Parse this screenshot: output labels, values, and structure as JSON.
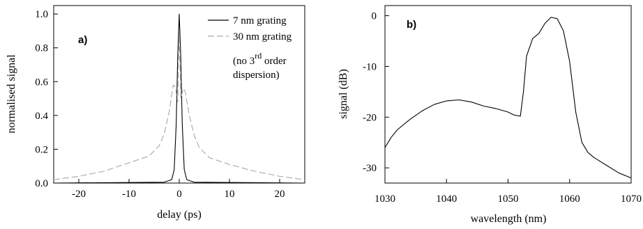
{
  "chart_data": [
    {
      "type": "line",
      "panel": "a)",
      "xlabel": "delay (ps)",
      "ylabel": "normalised signal",
      "xlim": [
        -25,
        25
      ],
      "ylim": [
        0,
        1.05
      ],
      "xticks": [
        "-20",
        "-10",
        "0",
        "10",
        "20"
      ],
      "yticks": [
        "0.0",
        "0.2",
        "0.4",
        "0.6",
        "0.8",
        "1.0"
      ],
      "legend_position": "top-right",
      "legend": [
        "7 nm grating",
        "30 nm grating"
      ],
      "annotation": {
        "line1_prefix": "(no 3",
        "line1_sup": "rd",
        "line1_suffix": " order",
        "line2": "dispersion)"
      },
      "series": [
        {
          "name": "7 nm grating",
          "color": "#000000",
          "style": "solid",
          "x": [
            -25,
            -3,
            -1.5,
            -1.0,
            -0.6,
            -0.3,
            0,
            0.3,
            0.6,
            1.0,
            1.5,
            3,
            25
          ],
          "y": [
            0.0,
            0.005,
            0.02,
            0.08,
            0.35,
            0.75,
            1.0,
            0.75,
            0.35,
            0.08,
            0.02,
            0.005,
            0.0
          ]
        },
        {
          "name": "30 nm grating",
          "color": "#a8a8a8",
          "style": "dashed",
          "x": [
            -25,
            -20,
            -15,
            -10,
            -8,
            -6,
            -4,
            -3,
            -2,
            -1.2,
            -0.8,
            -0.3,
            0,
            0.3,
            0.8,
            1.2,
            2,
            3,
            4,
            6,
            8,
            10,
            15,
            20,
            25
          ],
          "y": [
            0.02,
            0.04,
            0.07,
            0.12,
            0.14,
            0.16,
            0.22,
            0.29,
            0.42,
            0.58,
            0.57,
            0.48,
            0.9,
            0.5,
            0.56,
            0.54,
            0.4,
            0.28,
            0.21,
            0.15,
            0.13,
            0.11,
            0.07,
            0.04,
            0.02
          ]
        }
      ]
    },
    {
      "type": "line",
      "panel": "b)",
      "xlabel": "wavelength (nm)",
      "ylabel": "signal (dB)",
      "xlim": [
        1030,
        1070
      ],
      "ylim": [
        -33,
        2
      ],
      "xticks": [
        "1030",
        "1040",
        "1050",
        "1060",
        "1070"
      ],
      "yticks": [
        "-30",
        "-20",
        "-10",
        "0"
      ],
      "series": [
        {
          "color": "#000000",
          "style": "solid",
          "x": [
            1030,
            1031,
            1032,
            1034,
            1036,
            1038,
            1040,
            1042,
            1044,
            1046,
            1048,
            1050,
            1051,
            1052,
            1052.5,
            1053,
            1054,
            1055,
            1056,
            1057,
            1058,
            1059,
            1060,
            1061,
            1062,
            1063,
            1064,
            1066,
            1068,
            1070
          ],
          "y": [
            -26,
            -24,
            -22.5,
            -20.5,
            -18.8,
            -17.5,
            -16.8,
            -16.6,
            -17,
            -17.8,
            -18.3,
            -19,
            -19.6,
            -19.8,
            -15,
            -8,
            -4.5,
            -3.5,
            -1.5,
            -0.3,
            -0.6,
            -3,
            -9,
            -19,
            -25,
            -27,
            -28,
            -29.5,
            -31,
            -32
          ]
        }
      ]
    }
  ]
}
